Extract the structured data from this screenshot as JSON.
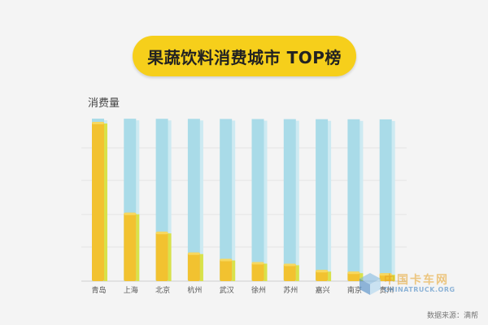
{
  "header": {
    "title": "果蔬饮料消费城市 TOP榜"
  },
  "footer": {
    "source": "数据来源：满帮"
  },
  "watermark": {
    "cn": "中国卡车网",
    "en": "CHINATRUCK.ORG"
  },
  "colors": {
    "track": "#a9dbe8",
    "bar": "#f2c230",
    "title_bg": "#f6cf1b"
  },
  "chart_data": {
    "type": "bar",
    "ylabel": "消费量",
    "categories": [
      "青岛",
      "上海",
      "北京",
      "杭州",
      "武汉",
      "徐州",
      "苏州",
      "嘉兴",
      "南京",
      "贵州"
    ],
    "values": [
      100,
      43,
      31,
      18,
      14,
      12,
      11,
      7,
      6,
      5
    ],
    "ylim": [
      0,
      100
    ],
    "grid": true,
    "legend": "none"
  }
}
